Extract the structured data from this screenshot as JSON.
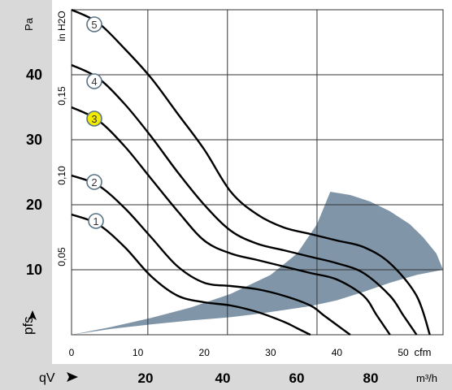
{
  "chart_data": {
    "type": "line",
    "title": "",
    "x_axis": {
      "label": "cfm",
      "ticks": [
        "0",
        "10",
        "20",
        "30",
        "40",
        "50"
      ],
      "range": [
        0,
        56
      ]
    },
    "x_axis_secondary": {
      "symbol": "qV",
      "unit": "m³/h",
      "ticks": [
        "20",
        "40",
        "60",
        "80"
      ]
    },
    "y_axis_left": {
      "symbol": "pfs",
      "unit": "Pa",
      "ticks": [
        "10",
        "20",
        "30",
        "40"
      ],
      "range": [
        0,
        50
      ]
    },
    "y_axis_right": {
      "unit": "in H2O",
      "ticks": [
        "0,05",
        "0,10",
        "0,15"
      ]
    },
    "grid": true,
    "curve_markers": [
      {
        "label": "1",
        "highlighted": false
      },
      {
        "label": "2",
        "highlighted": false
      },
      {
        "label": "3",
        "highlighted": true
      },
      {
        "label": "4",
        "highlighted": false
      },
      {
        "label": "5",
        "highlighted": false
      }
    ],
    "series": [
      {
        "id": "1",
        "x": [
          0,
          4,
          8,
          12,
          16,
          20,
          24,
          28,
          32,
          34,
          36
        ],
        "y": [
          18.5,
          17,
          13.5,
          9,
          6,
          5,
          4.5,
          3.5,
          2,
          1,
          0
        ]
      },
      {
        "id": "2",
        "x": [
          0,
          4,
          8,
          12,
          16,
          20,
          24,
          28,
          32,
          36,
          38,
          40,
          42
        ],
        "y": [
          24.5,
          23,
          19.5,
          15,
          10.5,
          8,
          7.5,
          7,
          6,
          4.5,
          3,
          1.5,
          0
        ]
      },
      {
        "id": "3",
        "x": [
          0,
          4,
          8,
          12,
          16,
          20,
          24,
          28,
          32,
          36,
          40,
          44,
          46,
          48
        ],
        "y": [
          35,
          33,
          29,
          24,
          19,
          14.5,
          12.5,
          11.5,
          10.5,
          9.5,
          8.5,
          6,
          3,
          0
        ]
      },
      {
        "id": "4",
        "x": [
          0,
          4,
          8,
          12,
          16,
          20,
          24,
          28,
          32,
          36,
          40,
          44,
          48,
          50,
          52
        ],
        "y": [
          41.5,
          39.5,
          35.5,
          30.5,
          25,
          20,
          16,
          14,
          13,
          12,
          11,
          9.5,
          6,
          3,
          0
        ]
      },
      {
        "id": "5",
        "x": [
          0,
          4,
          8,
          12,
          16,
          20,
          24,
          28,
          32,
          36,
          40,
          44,
          48,
          52,
          54
        ],
        "y": [
          50,
          48,
          44,
          39.5,
          34,
          28.5,
          22,
          18.5,
          16.5,
          15.5,
          14.5,
          13.5,
          11,
          6,
          0
        ]
      }
    ],
    "operating_region": {
      "fill": "#8096a8",
      "x": [
        0,
        6,
        12,
        18,
        24,
        30,
        34,
        37,
        39,
        42,
        45,
        48,
        51,
        53,
        55,
        56,
        52,
        48,
        44,
        40,
        36,
        32,
        28,
        24,
        18,
        12,
        6,
        0
      ],
      "y": [
        0,
        1.2,
        2.6,
        4.2,
        6.3,
        9.2,
        12.5,
        17,
        22,
        21.5,
        20.5,
        19,
        17,
        15,
        12.5,
        10,
        9.2,
        8,
        6.6,
        5.3,
        4.4,
        3.8,
        3.2,
        2.7,
        2.2,
        1.6,
        0.9,
        0
      ]
    },
    "colors": {
      "curve": "#000000",
      "grid": "#333333",
      "panel": "#d9d9d9",
      "marker_highlight": "#f2ea00",
      "marker_border": "#5a7485"
    }
  }
}
